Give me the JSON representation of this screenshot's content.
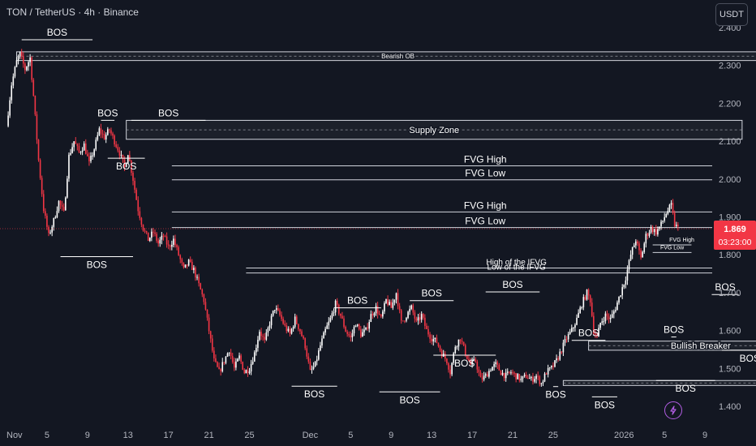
{
  "header": {
    "symbol": "TON / TetherUS · 4h · Binance",
    "currency_button": "USDT"
  },
  "colors": {
    "background": "#131722",
    "up": "#ffffff",
    "down": "#f23645",
    "annotation": "#ffffff",
    "axis_text": "#b2b5be",
    "price_tag": "#f23645"
  },
  "icons": {
    "lightning": "lightning-icon"
  },
  "chart_data": {
    "type": "candlestick",
    "y_axis": {
      "ticks": [
        2.4,
        2.3,
        2.2,
        2.1,
        2.0,
        1.9,
        1.8,
        1.7,
        1.6,
        1.5,
        1.4
      ],
      "tick_labels": [
        "2.400",
        "2.300",
        "2.200",
        "2.100",
        "2.000",
        "1.900",
        "1.800",
        "1.700",
        "1.600",
        "1.500",
        "1.400"
      ],
      "range": [
        1.33,
        2.44
      ]
    },
    "x_axis": {
      "tick_labels": [
        "Nov",
        "5",
        "9",
        "13",
        "17",
        "21",
        "25",
        "Dec",
        "5",
        "9",
        "13",
        "17",
        "21",
        "25",
        "2026",
        "5",
        "9"
      ],
      "tick_index": [
        0,
        24,
        48,
        72,
        96,
        120,
        144,
        180,
        204,
        228,
        252,
        276,
        300,
        324,
        366,
        390,
        414
      ]
    },
    "last_price": {
      "price": "1.869",
      "countdown": "03:23:00",
      "value": 1.869
    },
    "price_path": [
      [
        0,
        2.14
      ],
      [
        3,
        2.25
      ],
      [
        6,
        2.31
      ],
      [
        8,
        2.33
      ],
      [
        11,
        2.29
      ],
      [
        14,
        2.32
      ],
      [
        16,
        2.22
      ],
      [
        19,
        2.05
      ],
      [
        22,
        1.92
      ],
      [
        25,
        1.85
      ],
      [
        28,
        1.89
      ],
      [
        31,
        1.94
      ],
      [
        34,
        1.91
      ],
      [
        37,
        2.06
      ],
      [
        40,
        2.1
      ],
      [
        43,
        2.07
      ],
      [
        46,
        2.09
      ],
      [
        49,
        2.04
      ],
      [
        52,
        2.08
      ],
      [
        55,
        2.13
      ],
      [
        58,
        2.11
      ],
      [
        61,
        2.13
      ],
      [
        64,
        2.1
      ],
      [
        67,
        2.07
      ],
      [
        70,
        2.03
      ],
      [
        72,
        2.07
      ],
      [
        75,
        2.0
      ],
      [
        78,
        1.92
      ],
      [
        81,
        1.87
      ],
      [
        84,
        1.84
      ],
      [
        87,
        1.86
      ],
      [
        90,
        1.83
      ],
      [
        93,
        1.85
      ],
      [
        96,
        1.82
      ],
      [
        99,
        1.84
      ],
      [
        102,
        1.8
      ],
      [
        105,
        1.76
      ],
      [
        108,
        1.78
      ],
      [
        111,
        1.76
      ],
      [
        114,
        1.72
      ],
      [
        117,
        1.68
      ],
      [
        120,
        1.6
      ],
      [
        123,
        1.52
      ],
      [
        126,
        1.49
      ],
      [
        129,
        1.52
      ],
      [
        132,
        1.55
      ],
      [
        135,
        1.5
      ],
      [
        138,
        1.53
      ],
      [
        141,
        1.49
      ],
      [
        144,
        1.5
      ],
      [
        147,
        1.54
      ],
      [
        150,
        1.6
      ],
      [
        153,
        1.57
      ],
      [
        156,
        1.62
      ],
      [
        159,
        1.66
      ],
      [
        162,
        1.64
      ],
      [
        165,
        1.61
      ],
      [
        168,
        1.59
      ],
      [
        171,
        1.63
      ],
      [
        174,
        1.6
      ],
      [
        177,
        1.56
      ],
      [
        180,
        1.49
      ],
      [
        183,
        1.51
      ],
      [
        186,
        1.56
      ],
      [
        189,
        1.6
      ],
      [
        192,
        1.63
      ],
      [
        195,
        1.67
      ],
      [
        198,
        1.64
      ],
      [
        201,
        1.6
      ],
      [
        204,
        1.58
      ],
      [
        207,
        1.62
      ],
      [
        210,
        1.59
      ],
      [
        213,
        1.6
      ],
      [
        216,
        1.64
      ],
      [
        219,
        1.66
      ],
      [
        222,
        1.63
      ],
      [
        225,
        1.68
      ],
      [
        228,
        1.66
      ],
      [
        231,
        1.7
      ],
      [
        234,
        1.62
      ],
      [
        237,
        1.64
      ],
      [
        240,
        1.66
      ],
      [
        243,
        1.62
      ],
      [
        246,
        1.64
      ],
      [
        249,
        1.6
      ],
      [
        252,
        1.58
      ],
      [
        255,
        1.57
      ],
      [
        258,
        1.54
      ],
      [
        261,
        1.52
      ],
      [
        263,
        1.49
      ],
      [
        266,
        1.56
      ],
      [
        269,
        1.58
      ],
      [
        272,
        1.54
      ],
      [
        275,
        1.51
      ],
      [
        278,
        1.52
      ],
      [
        281,
        1.47
      ],
      [
        284,
        1.48
      ],
      [
        287,
        1.5
      ],
      [
        290,
        1.51
      ],
      [
        293,
        1.49
      ],
      [
        296,
        1.48
      ],
      [
        299,
        1.49
      ],
      [
        302,
        1.48
      ],
      [
        305,
        1.47
      ],
      [
        308,
        1.48
      ],
      [
        311,
        1.47
      ],
      [
        314,
        1.48
      ],
      [
        317,
        1.46
      ],
      [
        320,
        1.49
      ],
      [
        323,
        1.5
      ],
      [
        326,
        1.52
      ],
      [
        329,
        1.55
      ],
      [
        332,
        1.58
      ],
      [
        335,
        1.6
      ],
      [
        338,
        1.63
      ],
      [
        341,
        1.67
      ],
      [
        344,
        1.7
      ],
      [
        346,
        1.68
      ],
      [
        348,
        1.6
      ],
      [
        350,
        1.58
      ],
      [
        352,
        1.62
      ],
      [
        355,
        1.64
      ],
      [
        358,
        1.63
      ],
      [
        361,
        1.66
      ],
      [
        364,
        1.7
      ],
      [
        367,
        1.74
      ],
      [
        370,
        1.8
      ],
      [
        373,
        1.84
      ],
      [
        376,
        1.79
      ],
      [
        379,
        1.85
      ],
      [
        382,
        1.87
      ],
      [
        385,
        1.86
      ],
      [
        388,
        1.88
      ],
      [
        391,
        1.91
      ],
      [
        394,
        1.93
      ],
      [
        396,
        1.88
      ],
      [
        398,
        1.87
      ]
    ],
    "zones": [
      {
        "label": "Bearish OB",
        "y_low": 2.313,
        "y_high": 2.336,
        "x_start": 6,
        "x_end": 458
      },
      {
        "label": "Supply Zone",
        "y_low": 2.105,
        "y_high": 2.155,
        "x_start": 71,
        "x_end": 436
      },
      {
        "label": "Bullish Breaker",
        "y_low": 1.548,
        "y_high": 1.572,
        "x_start": 345,
        "x_end": 478
      },
      {
        "label": "",
        "y_low": 1.455,
        "y_high": 1.468,
        "x_start": 330,
        "x_end": 493
      }
    ],
    "lines": [
      {
        "label": "FVG High",
        "y": 2.035,
        "x_start": 98,
        "x_end": 540,
        "label_x": 0.58,
        "size": "large"
      },
      {
        "label": "FVG Low",
        "y": 1.998,
        "x_start": 98,
        "x_end": 540,
        "label_x": 0.58,
        "size": "large"
      },
      {
        "label": "FVG High",
        "y": 1.913,
        "x_start": 98,
        "x_end": 540,
        "label_x": 0.58,
        "size": "large"
      },
      {
        "label": "FVG Low",
        "y": 1.872,
        "x_start": 98,
        "x_end": 540,
        "label_x": 0.58,
        "size": "large"
      },
      {
        "label": "High of the IFVG",
        "y": 1.765,
        "x_start": 142,
        "x_end": 528,
        "label_x": 0.58,
        "size": "medium"
      },
      {
        "label": "Low of the IFVG",
        "y": 1.752,
        "x_start": 142,
        "x_end": 528,
        "label_x": 0.58,
        "size": "medium"
      },
      {
        "label": "FVG High",
        "y": 1.826,
        "x_start": 383,
        "x_end": 406,
        "label_x": 0.75,
        "size": "small"
      },
      {
        "label": "FVG Low",
        "y": 1.806,
        "x_start": 383,
        "x_end": 406,
        "label_x": 0.5,
        "size": "small"
      }
    ],
    "bos": [
      {
        "label": "BOS",
        "y": 2.368,
        "x_start": 9,
        "x_end": 51,
        "text": "above"
      },
      {
        "label": "BOS",
        "y": 2.155,
        "x_start": 56,
        "x_end": 64,
        "text": "above"
      },
      {
        "label": "BOS",
        "y": 2.155,
        "x_start": 74,
        "x_end": 118,
        "text": "above"
      },
      {
        "label": "BOS",
        "y": 2.055,
        "x_start": 60,
        "x_end": 82,
        "text": "below"
      },
      {
        "label": "BOS",
        "y": 1.795,
        "x_start": 32,
        "x_end": 75,
        "text": "below"
      },
      {
        "label": "BOS",
        "y": 1.453,
        "x_start": 169,
        "x_end": 196,
        "text": "below"
      },
      {
        "label": "BOS",
        "y": 1.66,
        "x_start": 194,
        "x_end": 222,
        "text": "above"
      },
      {
        "label": "BOS",
        "y": 1.438,
        "x_start": 221,
        "x_end": 257,
        "text": "below"
      },
      {
        "label": "BOS",
        "y": 1.679,
        "x_start": 239,
        "x_end": 265,
        "text": "above"
      },
      {
        "label": "BOS",
        "y": 1.535,
        "x_start": 253,
        "x_end": 290,
        "text": "below"
      },
      {
        "label": "BOS",
        "y": 1.702,
        "x_start": 284,
        "x_end": 316,
        "text": "above"
      },
      {
        "label": "BOS",
        "y": 1.452,
        "x_start": 324,
        "x_end": 327,
        "text": "below"
      },
      {
        "label": "BOS",
        "y": 1.574,
        "x_start": 335,
        "x_end": 355,
        "text": "above"
      },
      {
        "label": "BOS",
        "y": 1.425,
        "x_start": 347,
        "x_end": 362,
        "text": "below"
      },
      {
        "label": "BOS",
        "y": 1.583,
        "x_start": 394,
        "x_end": 397,
        "text": "above"
      },
      {
        "label": "BOS",
        "y": 1.468,
        "x_start": 385,
        "x_end": 420,
        "text": "below"
      },
      {
        "label": "BOS",
        "y": 1.695,
        "x_start": 418,
        "x_end": 434,
        "text": "above"
      },
      {
        "label": "BOS",
        "y": 1.548,
        "x_start": 424,
        "x_end": 457,
        "text": "below"
      }
    ]
  }
}
